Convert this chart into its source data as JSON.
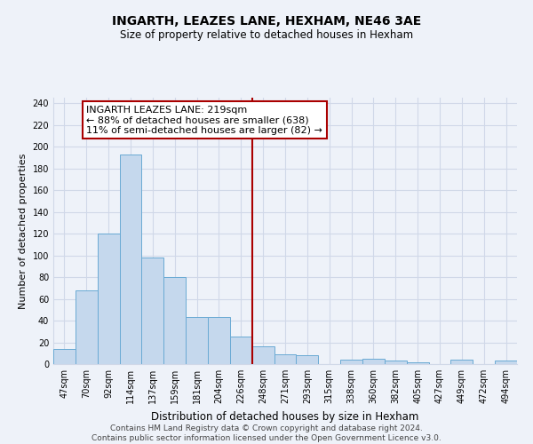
{
  "title": "INGARTH, LEAZES LANE, HEXHAM, NE46 3AE",
  "subtitle": "Size of property relative to detached houses in Hexham",
  "xlabel": "Distribution of detached houses by size in Hexham",
  "ylabel": "Number of detached properties",
  "bar_labels": [
    "47sqm",
    "70sqm",
    "92sqm",
    "114sqm",
    "137sqm",
    "159sqm",
    "181sqm",
    "204sqm",
    "226sqm",
    "248sqm",
    "271sqm",
    "293sqm",
    "315sqm",
    "338sqm",
    "360sqm",
    "382sqm",
    "405sqm",
    "427sqm",
    "449sqm",
    "472sqm",
    "494sqm"
  ],
  "bar_heights": [
    14,
    68,
    120,
    193,
    98,
    80,
    43,
    43,
    25,
    16,
    9,
    8,
    0,
    4,
    5,
    3,
    2,
    0,
    4,
    0,
    3
  ],
  "bar_color": "#c5d8ed",
  "bar_edge_color": "#6aaad4",
  "vline_x_idx": 8,
  "vline_color": "#aa0000",
  "annotation_title": "INGARTH LEAZES LANE: 219sqm",
  "annotation_line1": "← 88% of detached houses are smaller (638)",
  "annotation_line2": "11% of semi-detached houses are larger (82) →",
  "annotation_box_color": "#ffffff",
  "annotation_box_edge": "#aa0000",
  "ylim": [
    0,
    245
  ],
  "yticks": [
    0,
    20,
    40,
    60,
    80,
    100,
    120,
    140,
    160,
    180,
    200,
    220,
    240
  ],
  "footer_line1": "Contains HM Land Registry data © Crown copyright and database right 2024.",
  "footer_line2": "Contains public sector information licensed under the Open Government Licence v3.0.",
  "background_color": "#eef2f9",
  "grid_color": "#d0d8e8",
  "title_fontsize": 10,
  "subtitle_fontsize": 8.5,
  "xlabel_fontsize": 8.5,
  "ylabel_fontsize": 8,
  "tick_fontsize": 7,
  "ann_fontsize": 8,
  "footer_fontsize": 6.5
}
